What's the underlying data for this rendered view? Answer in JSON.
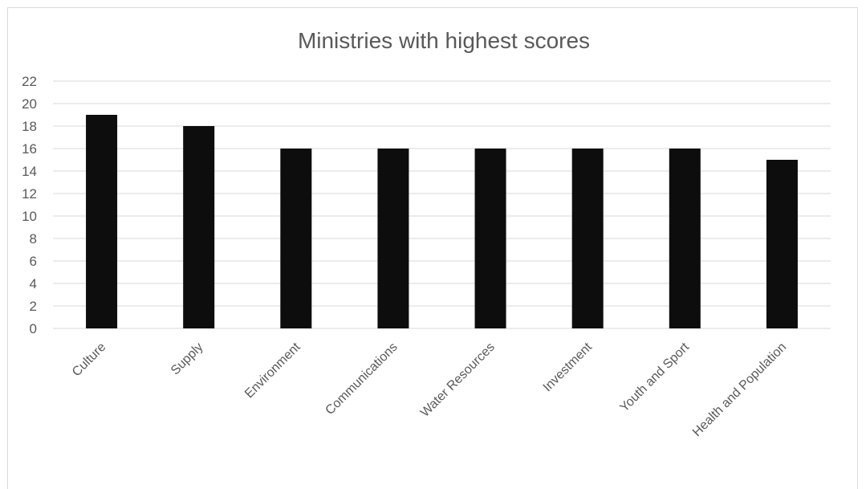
{
  "chart_data": {
    "type": "bar",
    "title": "Ministries with highest scores",
    "xlabel": "",
    "ylabel": "",
    "categories": [
      "Culture",
      "Supply",
      "Environment",
      "Communications",
      "Water Resources",
      "Investment",
      "Youth and Sport",
      "Health and Population"
    ],
    "values": [
      19,
      18,
      16,
      16,
      16,
      16,
      16,
      15
    ],
    "ylim": [
      0,
      22
    ],
    "yticks": [
      0,
      2,
      4,
      6,
      8,
      10,
      12,
      14,
      16,
      18,
      20,
      22
    ],
    "grid": true,
    "legend": "none",
    "bar_color": "#0d0d0d",
    "gridline_color": "#d9d9d9"
  }
}
